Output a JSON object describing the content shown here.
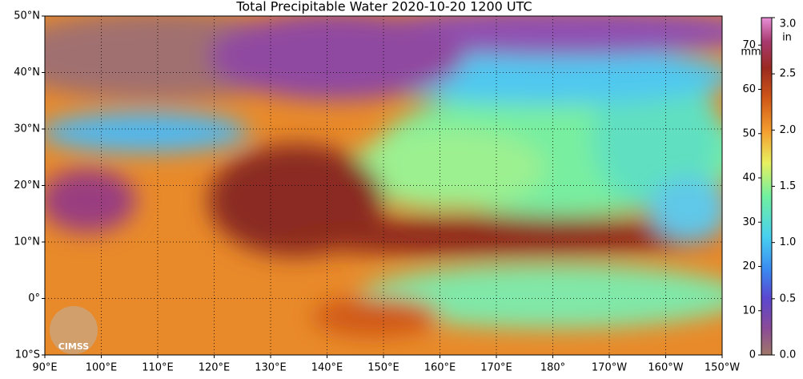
{
  "title": "Total Precipitable Water  2020-10-20 1200 UTC",
  "map": {
    "lat_labels": [
      "50°N",
      "40°N",
      "30°N",
      "20°N",
      "10°N",
      "0°",
      "10°S"
    ],
    "lon_labels": [
      "90°E",
      "100°E",
      "110°E",
      "120°E",
      "130°E",
      "140°E",
      "150°E",
      "160°E",
      "170°E",
      "180°",
      "170°W",
      "160°W",
      "150°W"
    ],
    "logo": "CIMSS"
  },
  "colorbar": {
    "mm_label": "mm",
    "in_label": "in",
    "mm_range": [
      0,
      76.2
    ],
    "mm_ticks": [
      70,
      60,
      50,
      40,
      30,
      20,
      10,
      0
    ],
    "in_range": [
      0,
      3.0
    ],
    "in_ticks": [
      {
        "value": 3,
        "label": "3.0"
      },
      {
        "value": 2.5,
        "label": "2.5"
      },
      {
        "value": 2,
        "label": "2.0"
      },
      {
        "value": 1.5,
        "label": "1.5"
      },
      {
        "value": 1,
        "label": "1.0"
      },
      {
        "value": 0.5,
        "label": "0.5"
      },
      {
        "value": 0,
        "label": "0.0"
      }
    ]
  }
}
